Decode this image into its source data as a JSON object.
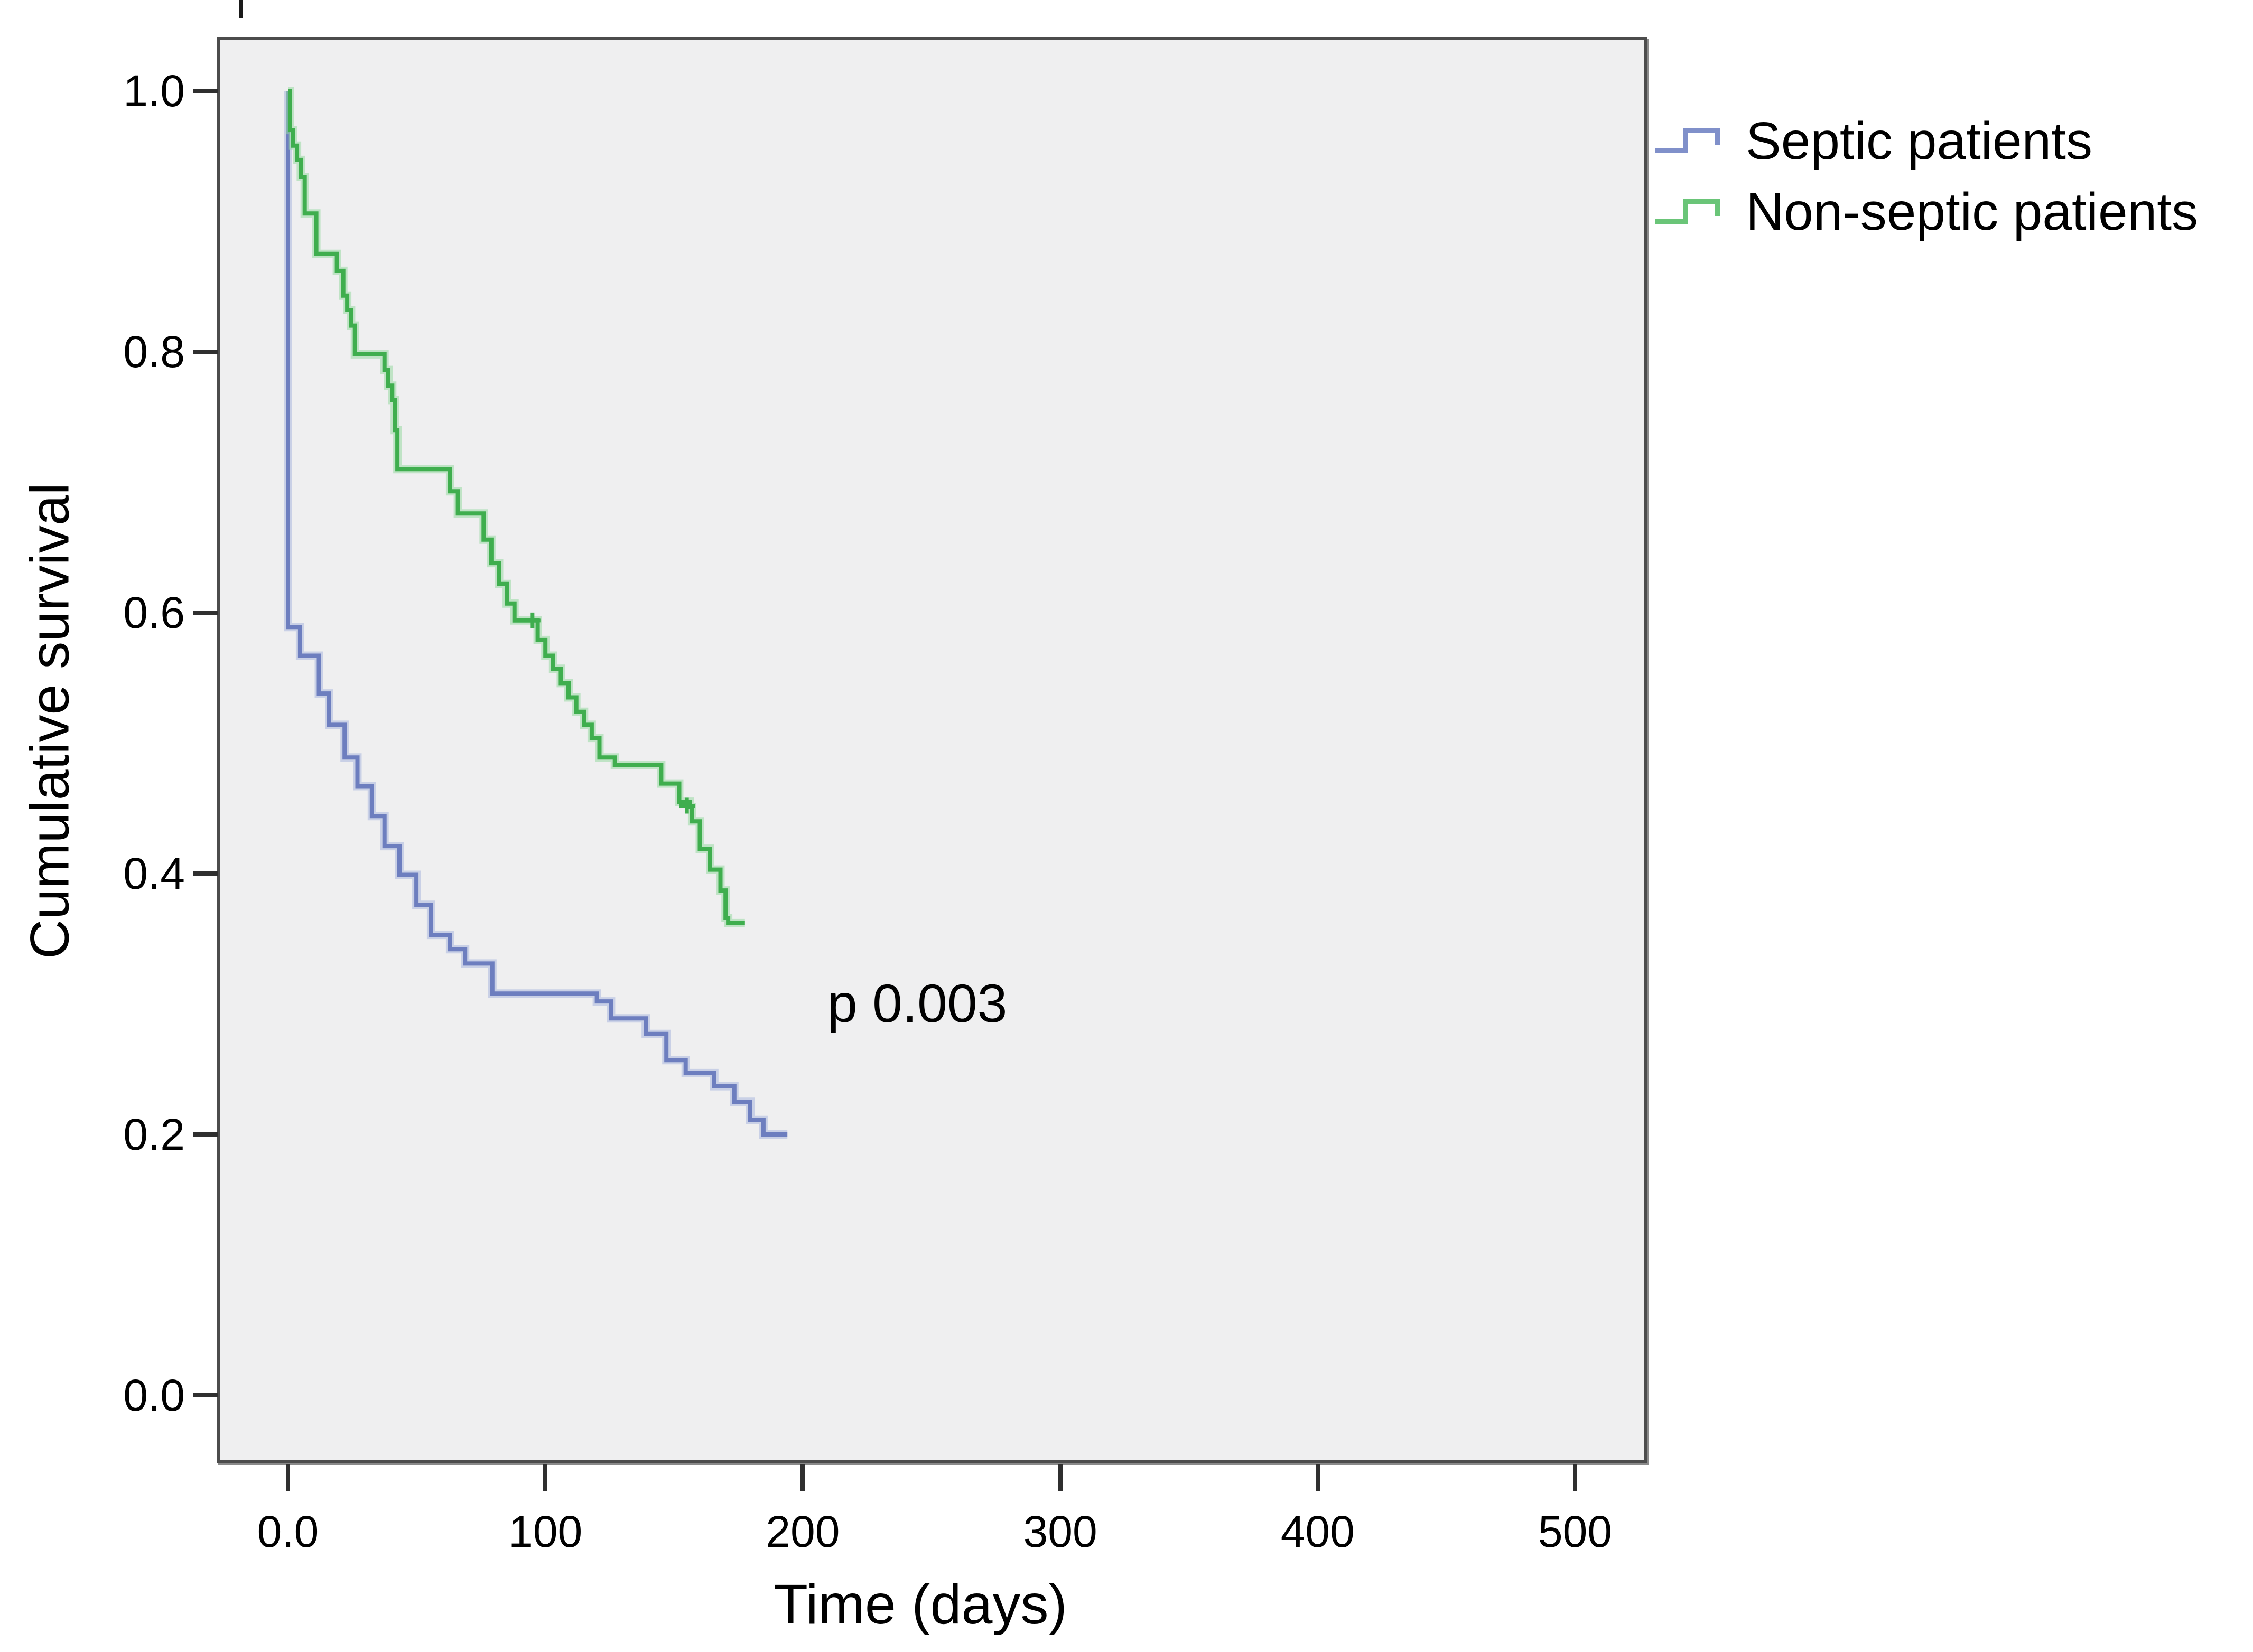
{
  "figure": {
    "y_axis": {
      "title": "Cumulative survival",
      "tick_labels": [
        "1.0",
        "0.8",
        "0.6",
        "0.4",
        "0.2",
        "0.0"
      ]
    },
    "x_axis": {
      "title": "Time (days)",
      "tick_labels": [
        "0.0",
        "100",
        "200",
        "300",
        "400",
        "500"
      ]
    },
    "annotation": {
      "p_value": "p 0.003"
    },
    "legend": [
      {
        "label": "Septic patients",
        "symbol_color": "#8090ca"
      },
      {
        "label": "Non-septic patients",
        "symbol_color": "#6ac578"
      }
    ],
    "colors": {
      "panel_background": "#efeff0",
      "panel_border": "#4c4c4c",
      "septic_curve": "#6d7ebf",
      "septic_halo": "#aab6de",
      "nonseptic_curve": "#3fae4e",
      "nonseptic_halo": "#98d8a2",
      "tick": "#2f2f2f",
      "text": "#000000"
    }
  },
  "chart_data": {
    "type": "line",
    "subtype": "kaplan-meier-step",
    "title": "",
    "xlabel": "Time (days)",
    "ylabel": "Cumulative survival",
    "x_ticks": [
      0,
      100,
      200,
      300,
      400,
      500
    ],
    "y_ticks": [
      1.0,
      0.8,
      0.6,
      0.4,
      0.2,
      0.0
    ],
    "xlim": [
      -28,
      528
    ],
    "ylim": [
      -0.052,
      1.041
    ],
    "grid": false,
    "legend_position": "top-right-outside",
    "annotation": {
      "text": "p 0.003",
      "x_days": 210,
      "y_survival": 0.3
    },
    "series": [
      {
        "name": "Septic patients",
        "color": "#6d7ebf",
        "halo": "#aab6de",
        "points": [
          [
            0,
            1.0
          ],
          [
            0,
            0.589
          ],
          [
            4.7,
            0.567
          ],
          [
            12,
            0.538
          ],
          [
            16,
            0.514
          ],
          [
            22,
            0.489
          ],
          [
            27,
            0.467
          ],
          [
            32.6,
            0.444
          ],
          [
            37.5,
            0.421
          ],
          [
            43.3,
            0.399
          ],
          [
            49.9,
            0.376
          ],
          [
            55.6,
            0.353
          ],
          [
            63,
            0.342
          ],
          [
            68.8,
            0.331
          ],
          [
            79.4,
            0.308
          ],
          [
            120,
            0.302
          ],
          [
            125.5,
            0.289
          ],
          [
            139,
            0.277
          ],
          [
            147,
            0.257
          ],
          [
            154.5,
            0.247
          ],
          [
            165.6,
            0.237
          ],
          [
            173.4,
            0.225
          ],
          [
            179.6,
            0.211
          ],
          [
            184.7,
            0.2
          ],
          [
            194,
            0.2
          ]
        ],
        "censor_marks": []
      },
      {
        "name": "Non-septic patients",
        "color": "#3fae4e",
        "halo": "#98d8a2",
        "points": [
          [
            0,
            1.0
          ],
          [
            0.8,
            0.97
          ],
          [
            2,
            0.958
          ],
          [
            3.5,
            0.947
          ],
          [
            5,
            0.934
          ],
          [
            6.5,
            0.906
          ],
          [
            11,
            0.875
          ],
          [
            19,
            0.862
          ],
          [
            21.5,
            0.843
          ],
          [
            23,
            0.832
          ],
          [
            24.5,
            0.82
          ],
          [
            26,
            0.798
          ],
          [
            37.5,
            0.786
          ],
          [
            39,
            0.774
          ],
          [
            40.5,
            0.763
          ],
          [
            41.5,
            0.74
          ],
          [
            42.5,
            0.71
          ],
          [
            63,
            0.693
          ],
          [
            66,
            0.676
          ],
          [
            76,
            0.656
          ],
          [
            79,
            0.638
          ],
          [
            82,
            0.622
          ],
          [
            85,
            0.607
          ],
          [
            88,
            0.594
          ],
          [
            97,
            0.579
          ],
          [
            100,
            0.567
          ],
          [
            103,
            0.557
          ],
          [
            106,
            0.546
          ],
          [
            109,
            0.535
          ],
          [
            112,
            0.524
          ],
          [
            115,
            0.514
          ],
          [
            118,
            0.504
          ],
          [
            121,
            0.489
          ],
          [
            127,
            0.483
          ],
          [
            145,
            0.469
          ],
          [
            152,
            0.455
          ],
          [
            156,
            0.451
          ],
          [
            157,
            0.44
          ],
          [
            160,
            0.419
          ],
          [
            164,
            0.403
          ],
          [
            168,
            0.387
          ],
          [
            170,
            0.366
          ],
          [
            171,
            0.362
          ],
          [
            177.5,
            0.362
          ]
        ],
        "censor_marks": [
          [
            95,
            0.594
          ],
          [
            155,
            0.452
          ]
        ]
      }
    ]
  }
}
